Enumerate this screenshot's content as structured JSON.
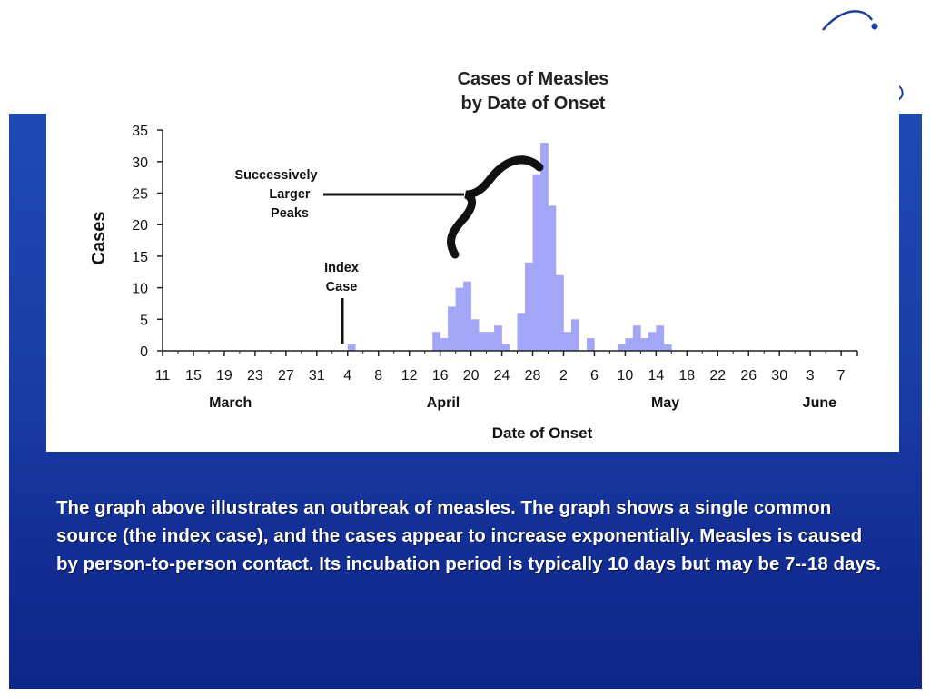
{
  "chart_data": {
    "type": "bar",
    "title_line1": "Cases of Measles",
    "title_line2": "by Date of Onset",
    "xlabel": "Date of Onset",
    "ylabel": "Cases",
    "ylim": [
      0,
      35
    ],
    "yticks": [
      0,
      5,
      10,
      15,
      20,
      25,
      30,
      35
    ],
    "x_tick_labels": [
      "11",
      "15",
      "19",
      "23",
      "27",
      "31",
      "4",
      "8",
      "12",
      "16",
      "20",
      "24",
      "28",
      "2",
      "6",
      "10",
      "14",
      "18",
      "22",
      "26",
      "30",
      "3",
      "7"
    ],
    "month_labels": [
      {
        "label": "March",
        "tick_index": 2.2
      },
      {
        "label": "April",
        "tick_index": 9.1
      },
      {
        "label": "May",
        "tick_index": 16.3
      },
      {
        "label": "June",
        "tick_index": 21.3
      }
    ],
    "day_index_start_label": "March 11",
    "bars": [
      {
        "day": 24,
        "value": 1
      },
      {
        "day": 35,
        "value": 3
      },
      {
        "day": 36,
        "value": 2
      },
      {
        "day": 37,
        "value": 7
      },
      {
        "day": 38,
        "value": 10
      },
      {
        "day": 39,
        "value": 11
      },
      {
        "day": 40,
        "value": 5
      },
      {
        "day": 41,
        "value": 3
      },
      {
        "day": 42,
        "value": 3
      },
      {
        "day": 43,
        "value": 4
      },
      {
        "day": 44,
        "value": 1
      },
      {
        "day": 46,
        "value": 6
      },
      {
        "day": 47,
        "value": 14
      },
      {
        "day": 48,
        "value": 28
      },
      {
        "day": 49,
        "value": 33
      },
      {
        "day": 50,
        "value": 23
      },
      {
        "day": 51,
        "value": 12
      },
      {
        "day": 52,
        "value": 3
      },
      {
        "day": 53,
        "value": 5
      },
      {
        "day": 55,
        "value": 2
      },
      {
        "day": 59,
        "value": 1
      },
      {
        "day": 60,
        "value": 2
      },
      {
        "day": 61,
        "value": 4
      },
      {
        "day": 62,
        "value": 2
      },
      {
        "day": 63,
        "value": 3
      },
      {
        "day": 64,
        "value": 4
      },
      {
        "day": 65,
        "value": 1
      }
    ],
    "bar_color": "#a3a6f6",
    "annotations": {
      "index_case_line1": "Index",
      "index_case_line2": "Case",
      "peaks_line1": "Successively",
      "peaks_line2": "Larger",
      "peaks_line3": "Peaks"
    }
  },
  "caption": "The graph above illustrates an outbreak of measles. The graph shows a single common source (the index case), and the cases appear to increase exponentially. Measles is caused by person-to-person contact. Its incubation period is typically 10 days but may be 7--18 days."
}
